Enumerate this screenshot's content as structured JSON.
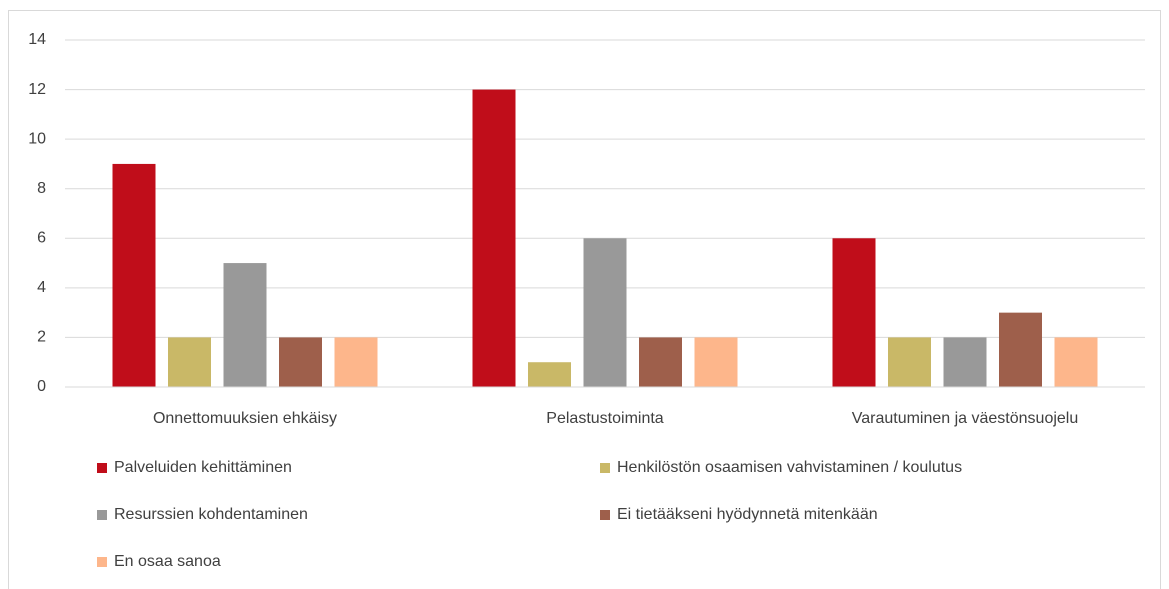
{
  "chart_data": {
    "type": "bar",
    "categories": [
      "Onnettomuuksien ehkäisy",
      "Pelastustoiminta",
      "Varautuminen ja väestönsuojelu"
    ],
    "series": [
      {
        "name": "Palveluiden kehittäminen",
        "color": "#c00d1a",
        "values": [
          9,
          12,
          6
        ]
      },
      {
        "name": "Henkilöstön osaamisen vahvistaminen / koulutus",
        "color": "#c9b867",
        "values": [
          2,
          1,
          2
        ]
      },
      {
        "name": "Resurssien kohdentaminen",
        "color": "#999999",
        "values": [
          5,
          6,
          2
        ]
      },
      {
        "name": "Ei tietääkseni hyödynnetä mitenkään",
        "color": "#9e5f4b",
        "values": [
          2,
          2,
          3
        ]
      },
      {
        "name": "En osaa sanoa",
        "color": "#fdb68b",
        "values": [
          2,
          2,
          2
        ]
      }
    ],
    "ylim": [
      0,
      14
    ],
    "yticks": [
      0,
      2,
      4,
      6,
      8,
      10,
      12,
      14
    ],
    "grid": true,
    "legend": "bottom"
  }
}
